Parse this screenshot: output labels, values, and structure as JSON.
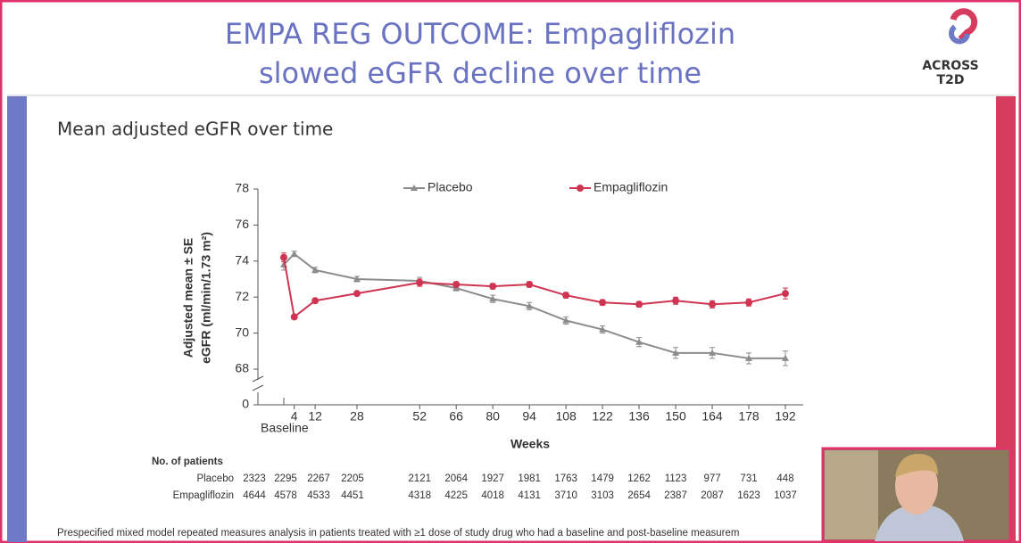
{
  "header": {
    "title": [
      "EMPA REG OUTCOME: Empagliflozin",
      "slowed eGFR decline over time"
    ],
    "logo": [
      "ACROSS",
      "T2D"
    ]
  },
  "chart_data": {
    "type": "line",
    "subtitle": "Mean adjusted eGFR over time",
    "y_label": [
      "Adjusted mean ± SE",
      "eGFR (ml/min/1.73 m²)"
    ],
    "x_label": "Weeks",
    "x": [
      0,
      4,
      12,
      28,
      52,
      66,
      80,
      94,
      108,
      122,
      136,
      150,
      164,
      178,
      192
    ],
    "xlim": [
      0,
      192
    ],
    "xticks": [
      {
        "value": 0,
        "label": "Baseline"
      },
      4,
      12,
      28,
      52,
      66,
      80,
      94,
      108,
      122,
      136,
      150,
      164,
      178,
      192
    ],
    "ylim": [
      0,
      78
    ],
    "ybreak": [
      0,
      67
    ],
    "yticks": [
      0,
      68,
      70,
      72,
      74,
      76,
      78
    ],
    "series": [
      {
        "name": "Placebo",
        "color": "#8c8c8c",
        "marker": "triangle",
        "values": [
          73.8,
          74.4,
          73.5,
          73.0,
          72.9,
          72.5,
          71.9,
          71.5,
          70.7,
          70.2,
          69.5,
          68.9,
          68.9,
          68.6,
          68.6
        ],
        "errors": [
          0.3,
          0.15,
          0.15,
          0.15,
          0.2,
          0.15,
          0.2,
          0.2,
          0.2,
          0.2,
          0.25,
          0.3,
          0.3,
          0.3,
          0.4
        ]
      },
      {
        "name": "Empagliflozin",
        "color": "#cf3552",
        "marker": "circle",
        "values": [
          74.2,
          70.9,
          71.8,
          72.2,
          72.8,
          72.7,
          72.6,
          72.7,
          72.1,
          71.7,
          71.6,
          71.8,
          71.6,
          71.7,
          72.2
        ],
        "errors": [
          0.25,
          0.1,
          0.1,
          0.1,
          0.2,
          0.15,
          0.15,
          0.15,
          0.15,
          0.15,
          0.15,
          0.2,
          0.2,
          0.2,
          0.3
        ]
      }
    ],
    "patients": {
      "title": "No. of patients",
      "rows": [
        {
          "name": "Placebo",
          "values": [
            2323,
            2295,
            2267,
            2205,
            2121,
            2064,
            1927,
            1981,
            1763,
            1479,
            1262,
            1123,
            977,
            731,
            448
          ]
        },
        {
          "name": "Empagliflozin",
          "values": [
            4644,
            4578,
            4533,
            4451,
            4318,
            4225,
            4018,
            4131,
            3710,
            3103,
            2654,
            2387,
            2087,
            1623,
            1037
          ]
        }
      ]
    },
    "footnote": "Prespecified mixed model repeated measures analysis in patients treated with ≥1 dose of study drug who had a baseline and post-baseline measurem"
  }
}
